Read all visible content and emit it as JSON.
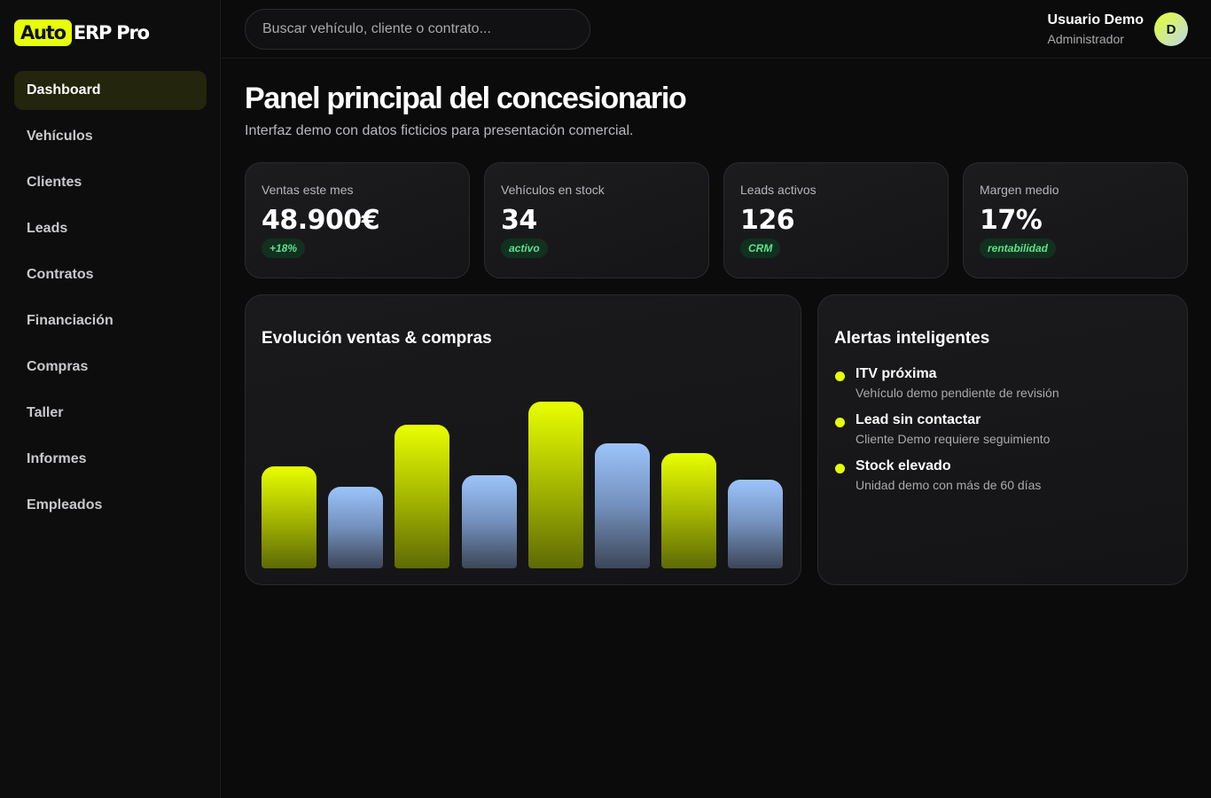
{
  "brand": {
    "badge": "Auto",
    "rest": "ERP Pro"
  },
  "sidebar": {
    "items": [
      {
        "label": "Dashboard",
        "active": true
      },
      {
        "label": "Vehículos",
        "active": false
      },
      {
        "label": "Clientes",
        "active": false
      },
      {
        "label": "Leads",
        "active": false
      },
      {
        "label": "Contratos",
        "active": false
      },
      {
        "label": "Financiación",
        "active": false
      },
      {
        "label": "Compras",
        "active": false
      },
      {
        "label": "Taller",
        "active": false
      },
      {
        "label": "Informes",
        "active": false
      },
      {
        "label": "Empleados",
        "active": false
      }
    ]
  },
  "search": {
    "placeholder": "Buscar vehículo, cliente o contrato...",
    "value": ""
  },
  "user": {
    "name": "Usuario Demo",
    "role": "Administrador",
    "initial": "D"
  },
  "header": {
    "title": "Panel principal del concesionario",
    "subtitle": "Interfaz demo con datos ficticios para presentación comercial."
  },
  "stats": [
    {
      "label": "Ventas este mes",
      "value": "48.900€",
      "badge": "+18%"
    },
    {
      "label": "Vehículos en stock",
      "value": "34",
      "badge": "activo"
    },
    {
      "label": "Leads activos",
      "value": "126",
      "badge": "CRM"
    },
    {
      "label": "Margen medio",
      "value": "17%",
      "badge": "rentabilidad"
    }
  ],
  "chart": {
    "title": "Evolución ventas & compras"
  },
  "chart_data": {
    "type": "bar",
    "title": "Evolución ventas & compras",
    "ylim": [
      0,
      100
    ],
    "bars": [
      {
        "kind": "sales",
        "value": 61
      },
      {
        "kind": "purchases",
        "value": 49
      },
      {
        "kind": "sales",
        "value": 86
      },
      {
        "kind": "purchases",
        "value": 56
      },
      {
        "kind": "sales",
        "value": 100
      },
      {
        "kind": "purchases",
        "value": 75
      },
      {
        "kind": "sales",
        "value": 69
      },
      {
        "kind": "purchases",
        "value": 53
      }
    ],
    "colors": {
      "sales": "#e8ff00",
      "purchases": "#9cc4fb"
    }
  },
  "alerts": {
    "title": "Alertas inteligentes",
    "items": [
      {
        "title": "ITV próxima",
        "desc": "Vehículo demo pendiente de revisión"
      },
      {
        "title": "Lead sin contactar",
        "desc": "Cliente Demo requiere seguimiento"
      },
      {
        "title": "Stock elevado",
        "desc": "Unidad demo con más de 60 días"
      }
    ]
  },
  "theme": {
    "accent": "#e6ff0a",
    "success": "#5ee08c",
    "background": "#0b0b0c"
  }
}
